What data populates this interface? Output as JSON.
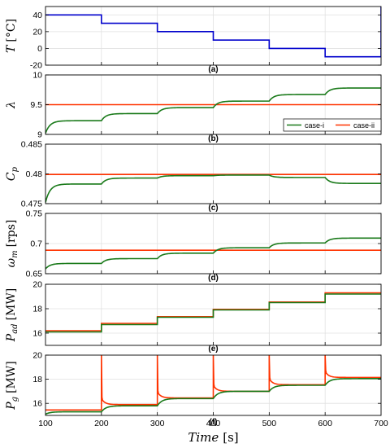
{
  "chart_data": [
    {
      "type": "line",
      "panel": "(a)",
      "ylabel_main": "T",
      "ylabel_unit": "[°C]",
      "ylim": [
        -20,
        50
      ],
      "yticks": [
        "40",
        "20",
        "0",
        "-20"
      ],
      "ytick_values": [
        40,
        20,
        0,
        -20
      ],
      "color": "#0000cc",
      "x": [
        100,
        200,
        200,
        300,
        300,
        400,
        400,
        500,
        500,
        600,
        600,
        700,
        700
      ],
      "y": [
        40,
        40,
        30,
        30,
        20,
        20,
        10,
        10,
        0,
        0,
        -10,
        -10,
        50
      ]
    },
    {
      "type": "line",
      "panel": "(b)",
      "ylabel_main": "λ",
      "ylabel_unit": "",
      "ylim": [
        9,
        10
      ],
      "yticks": [
        "10",
        "9.5",
        "9"
      ],
      "ytick_values": [
        10,
        9.5,
        9
      ],
      "legend": {
        "position": "bottom-right",
        "labels": [
          "case-i",
          "case-ii"
        ]
      },
      "series": [
        {
          "name": "case-i",
          "color": "#1a7a1a",
          "kind": "steps",
          "start": 9.02,
          "settle": 9.23,
          "step_settles": [
            9.35,
            9.45,
            9.56,
            9.67,
            9.78
          ]
        },
        {
          "name": "case-ii",
          "color": "#ff3300",
          "kind": "flat",
          "value": 9.5
        }
      ]
    },
    {
      "type": "line",
      "panel": "(c)",
      "ylabel_main": "C",
      "ylabel_sub": "p",
      "ylabel_unit": "",
      "ylim": [
        0.475,
        0.485
      ],
      "yticks": [
        "0.485",
        "0.48",
        "0.475"
      ],
      "ytick_values": [
        0.485,
        0.48,
        0.475
      ],
      "series": [
        {
          "name": "case-i",
          "color": "#1a7a1a",
          "kind": "steps",
          "start": 0.4752,
          "settle": 0.4783,
          "step_settles": [
            0.4793,
            0.4797,
            0.4798,
            0.4794,
            0.4784
          ]
        },
        {
          "name": "case-ii",
          "color": "#ff3300",
          "kind": "flat",
          "value": 0.4799
        }
      ]
    },
    {
      "type": "line",
      "panel": "(d)",
      "ylabel_main": "ω",
      "ylabel_sub": "m",
      "ylabel_unit": "[rps]",
      "ylim": [
        0.65,
        0.75
      ],
      "yticks": [
        "0.75",
        "0.7",
        "0.65"
      ],
      "ytick_values": [
        0.75,
        0.7,
        0.65
      ],
      "series": [
        {
          "name": "case-i",
          "color": "#1a7a1a",
          "kind": "steps",
          "start": 0.658,
          "settle": 0.667,
          "step_settles": [
            0.675,
            0.684,
            0.693,
            0.701,
            0.709
          ]
        },
        {
          "name": "case-ii",
          "color": "#ff3300",
          "kind": "flat",
          "value": 0.689
        }
      ]
    },
    {
      "type": "line",
      "panel": "(e)",
      "ylabel_main": "P",
      "ylabel_sub": "ad",
      "ylabel_unit": "[MW]",
      "ylim": [
        15,
        20
      ],
      "yticks": [
        "20",
        "18",
        "16"
      ],
      "ytick_values": [
        20,
        18,
        16
      ],
      "series": [
        {
          "name": "case-i",
          "color": "#1a7a1a",
          "kind": "plateaus",
          "values": [
            16.1,
            16.7,
            17.3,
            17.9,
            18.5,
            19.2
          ]
        },
        {
          "name": "case-ii",
          "color": "#ff3300",
          "kind": "plateaus",
          "values": [
            16.2,
            16.8,
            17.35,
            17.95,
            18.55,
            19.3
          ]
        }
      ]
    },
    {
      "type": "line",
      "panel": "(f)",
      "ylabel_main": "P",
      "ylabel_sub": "g",
      "ylabel_unit": "[MW]",
      "ylim": [
        15,
        20
      ],
      "yticks": [
        "20",
        "18",
        "16"
      ],
      "ytick_values": [
        20,
        18,
        16
      ],
      "xticks": [
        "100",
        "200",
        "300",
        "400",
        "500",
        "600",
        "700"
      ],
      "xtick_values": [
        100,
        200,
        300,
        400,
        500,
        600,
        700
      ],
      "xlabel_main": "Time",
      "xlabel_unit": "[s]",
      "series": [
        {
          "name": "case-i",
          "color": "#1a7a1a",
          "kind": "steps",
          "start": 15.1,
          "settle": 15.3,
          "step_settles": [
            15.8,
            16.4,
            17.0,
            17.5,
            18.05
          ]
        },
        {
          "name": "case-ii",
          "color": "#ff3300",
          "kind": "spikes",
          "start": 15.45,
          "settle": 15.45,
          "step_settles": [
            15.9,
            16.45,
            17.0,
            17.55,
            18.15
          ],
          "spike_peak": 20
        }
      ]
    }
  ]
}
